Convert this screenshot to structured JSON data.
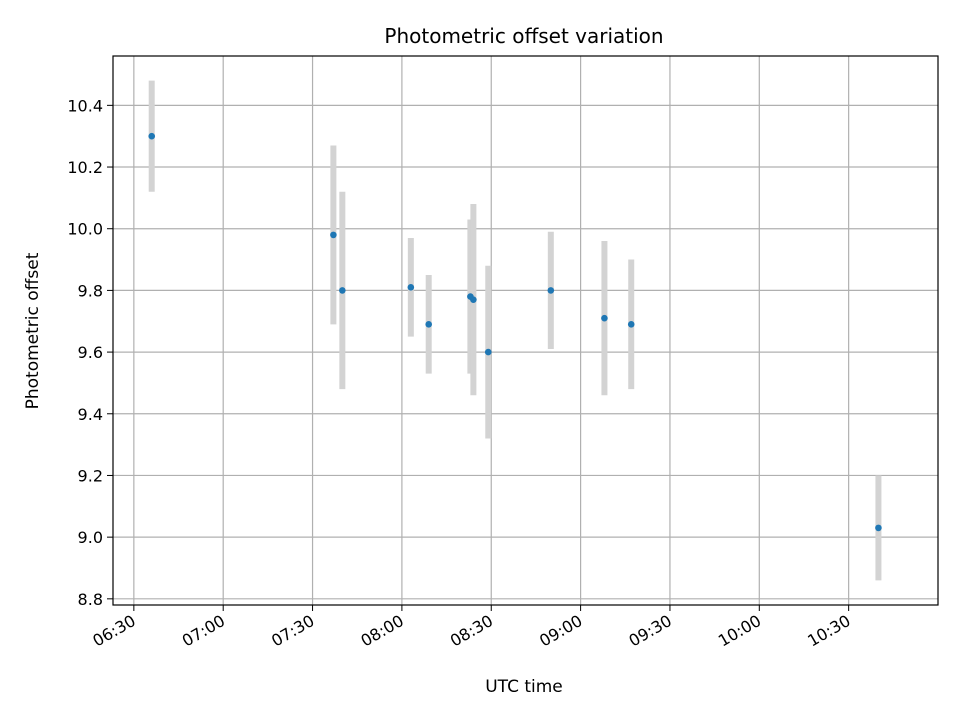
{
  "chart_data": {
    "type": "scatter",
    "title": "Photometric offset variation",
    "xlabel": "UTC time",
    "ylabel": "Photometric offset",
    "x_ticks": [
      "06:30",
      "07:00",
      "07:30",
      "08:00",
      "08:30",
      "09:00",
      "09:30",
      "10:00",
      "10:30"
    ],
    "y_ticks": [
      "8.8",
      "9.0",
      "9.2",
      "9.4",
      "9.6",
      "9.8",
      "10.0",
      "10.2",
      "10.4"
    ],
    "xlim": [
      "06:23",
      "11:00"
    ],
    "ylim": [
      8.78,
      10.56
    ],
    "grid": true,
    "series": [
      {
        "marker_color": "#1f77b4",
        "errorbar_color": "#d3d3d3",
        "points": [
          {
            "x": "06:36",
            "y": 10.3,
            "err": 0.18
          },
          {
            "x": "07:37",
            "y": 9.98,
            "err": 0.29
          },
          {
            "x": "07:40",
            "y": 9.8,
            "err": 0.32
          },
          {
            "x": "08:03",
            "y": 9.81,
            "err": 0.16
          },
          {
            "x": "08:09",
            "y": 9.69,
            "err": 0.16
          },
          {
            "x": "08:23",
            "y": 9.78,
            "err": 0.25
          },
          {
            "x": "08:24",
            "y": 9.77,
            "err": 0.31
          },
          {
            "x": "08:29",
            "y": 9.6,
            "err": 0.28
          },
          {
            "x": "08:50",
            "y": 9.8,
            "err": 0.19
          },
          {
            "x": "09:08",
            "y": 9.71,
            "err": 0.25
          },
          {
            "x": "09:17",
            "y": 9.69,
            "err": 0.21
          },
          {
            "x": "10:40",
            "y": 9.03,
            "err": 0.17
          }
        ]
      }
    ]
  }
}
